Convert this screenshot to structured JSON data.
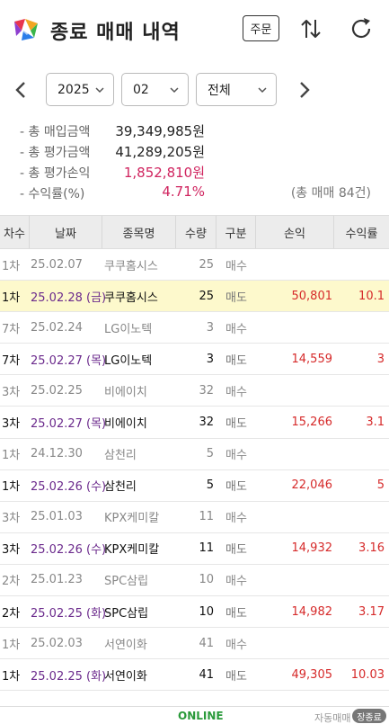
{
  "header": {
    "title": "종료 매매 내역",
    "order_label": "주문"
  },
  "selectors": {
    "year": "2025",
    "month": "02",
    "type": "전체"
  },
  "summary": {
    "items": [
      {
        "label": "- 총 매입금액",
        "value": "39,349,985원",
        "color": "#222222"
      },
      {
        "label": "- 총 평가금액",
        "value": "41,289,205원",
        "color": "#222222"
      },
      {
        "label": "- 총 평가손익",
        "value": "1,852,810원",
        "color": "#d0245f"
      },
      {
        "label": "- 수익률(%)",
        "value": "4.71%",
        "color": "#d0245f"
      }
    ],
    "trade_count": "(총 매매 84건)"
  },
  "table": {
    "headers": [
      "차수",
      "날짜",
      "종목명",
      "수량",
      "구분",
      "손익",
      "수익률"
    ],
    "rows": [
      {
        "round": "1차",
        "date": "25.02.07",
        "name": "쿠쿠홈시스",
        "qty": "25",
        "type": "매수",
        "pl": "",
        "rate": "",
        "kind": "buy"
      },
      {
        "round": "1차",
        "date": "25.02.28 (금)",
        "name": "쿠쿠홈시스",
        "qty": "25",
        "type": "매도",
        "pl": "50,801",
        "rate": "10.1",
        "kind": "sell",
        "highlight": true
      },
      {
        "round": "7차",
        "date": "25.02.24",
        "name": "LG이노텍",
        "qty": "3",
        "type": "매수",
        "pl": "",
        "rate": "",
        "kind": "buy"
      },
      {
        "round": "7차",
        "date": "25.02.27 (목)",
        "name": "LG이노텍",
        "qty": "3",
        "type": "매도",
        "pl": "14,559",
        "rate": "3",
        "kind": "sell"
      },
      {
        "round": "3차",
        "date": "25.02.25",
        "name": "비에이치",
        "qty": "32",
        "type": "매수",
        "pl": "",
        "rate": "",
        "kind": "buy"
      },
      {
        "round": "3차",
        "date": "25.02.27 (목)",
        "name": "비에이치",
        "qty": "32",
        "type": "매도",
        "pl": "15,266",
        "rate": "3.1",
        "kind": "sell"
      },
      {
        "round": "1차",
        "date": "24.12.30",
        "name": "삼천리",
        "qty": "5",
        "type": "매수",
        "pl": "",
        "rate": "",
        "kind": "buy"
      },
      {
        "round": "1차",
        "date": "25.02.26 (수)",
        "name": "삼천리",
        "qty": "5",
        "type": "매도",
        "pl": "22,046",
        "rate": "5",
        "kind": "sell"
      },
      {
        "round": "3차",
        "date": "25.01.03",
        "name": "KPX케미칼",
        "qty": "11",
        "type": "매수",
        "pl": "",
        "rate": "",
        "kind": "buy"
      },
      {
        "round": "3차",
        "date": "25.02.26 (수)",
        "name": "KPX케미칼",
        "qty": "11",
        "type": "매도",
        "pl": "14,932",
        "rate": "3.16",
        "kind": "sell"
      },
      {
        "round": "2차",
        "date": "25.01.23",
        "name": "SPC삼립",
        "qty": "10",
        "type": "매수",
        "pl": "",
        "rate": "",
        "kind": "buy"
      },
      {
        "round": "2차",
        "date": "25.02.25 (화)",
        "name": "SPC삼립",
        "qty": "10",
        "type": "매도",
        "pl": "14,982",
        "rate": "3.17",
        "kind": "sell"
      },
      {
        "round": "1차",
        "date": "25.02.03",
        "name": "서연이화",
        "qty": "41",
        "type": "매수",
        "pl": "",
        "rate": "",
        "kind": "buy"
      },
      {
        "round": "1차",
        "date": "25.02.25 (화)",
        "name": "서연이화",
        "qty": "41",
        "type": "매도",
        "pl": "49,305",
        "rate": "10.03",
        "kind": "sell"
      }
    ]
  },
  "footer": {
    "status": "ONLINE",
    "auto_label": "자동매매",
    "auto_toggle": "장종료"
  },
  "colors": {
    "profit": "#d62a2a",
    "sell_date": "#6b2a8c",
    "highlight_row": "#fdf9cc",
    "online": "#2a9a3a"
  },
  "icons": [
    "app-logo-icon",
    "swap-vertical-icon",
    "refresh-icon",
    "arrow-left-icon",
    "arrow-right-icon",
    "chevron-down-icon"
  ]
}
